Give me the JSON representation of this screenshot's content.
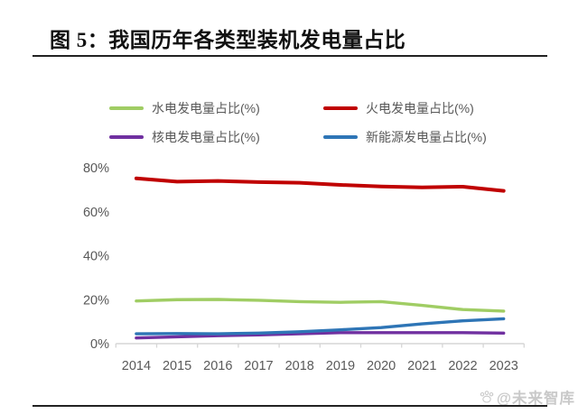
{
  "figure": {
    "title": "图 5：我国历年各类型装机发电量占比",
    "watermark": "@未来智库"
  },
  "chart_data": {
    "type": "line",
    "title": "我国历年各类型装机发电量占比",
    "categories": [
      "2014",
      "2015",
      "2016",
      "2017",
      "2018",
      "2019",
      "2020",
      "2021",
      "2022",
      "2023"
    ],
    "series": [
      {
        "name": "水电发电量占比(%)",
        "color": "#a0cd64",
        "values": [
          19.4,
          20.0,
          20.1,
          19.7,
          19.1,
          18.8,
          19.1,
          17.4,
          15.5,
          14.8
        ]
      },
      {
        "name": "火电发电量占比(%)",
        "color": "#c00000",
        "values": [
          75.2,
          73.7,
          74.0,
          73.5,
          73.2,
          72.2,
          71.5,
          71.1,
          71.4,
          69.5
        ]
      },
      {
        "name": "核电发电量占比(%)",
        "color": "#7030a0",
        "values": [
          2.6,
          3.1,
          3.6,
          4.0,
          4.5,
          5.0,
          5.0,
          5.0,
          5.0,
          4.8
        ]
      },
      {
        "name": "新能源发电量占比(%)",
        "color": "#2e75b6",
        "values": [
          4.5,
          4.6,
          4.5,
          4.8,
          5.4,
          6.3,
          7.3,
          9.0,
          10.4,
          11.3
        ]
      }
    ],
    "xlabel": "",
    "ylabel": "",
    "ylim": [
      0,
      80
    ],
    "yticks": [
      "0%",
      "20%",
      "40%",
      "60%",
      "80%"
    ],
    "ytick_values": [
      0,
      20,
      40,
      60,
      80
    ],
    "legend_position": "top",
    "grid": false,
    "axis_color": "#d6d6d6",
    "label_color": "#595959"
  }
}
